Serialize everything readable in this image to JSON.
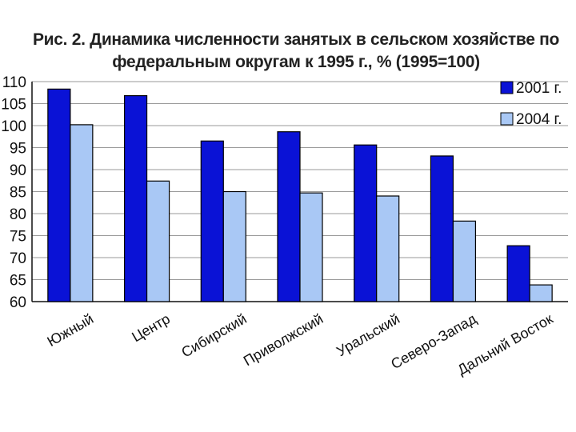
{
  "chart_data": {
    "type": "bar",
    "title_lines": [
      "Рис. 2. Динамика численности занятых в сельском хозяйстве по",
      "федеральным округам к 1995 г., % (1995=100)"
    ],
    "xlabel": "",
    "ylabel": "",
    "categories": [
      "Южный",
      "Центр",
      "Сибирский",
      "Приволжский",
      "Уральский",
      "Северо-Запад",
      "Дальний Восток"
    ],
    "series": [
      {
        "name": "2001 г.",
        "color": "#0a12d6",
        "values": [
          108.3,
          106.8,
          96.5,
          98.6,
          95.6,
          93.1,
          72.7
        ]
      },
      {
        "name": "2004 г.",
        "color": "#a9c8f5",
        "values": [
          100.2,
          87.4,
          85.0,
          84.7,
          84.0,
          78.3,
          63.8
        ]
      }
    ],
    "ylim": [
      60,
      110
    ],
    "yticks": [
      60,
      65,
      70,
      75,
      80,
      85,
      90,
      95,
      100,
      105,
      110
    ],
    "grid": true,
    "legend_position": "top-right"
  }
}
